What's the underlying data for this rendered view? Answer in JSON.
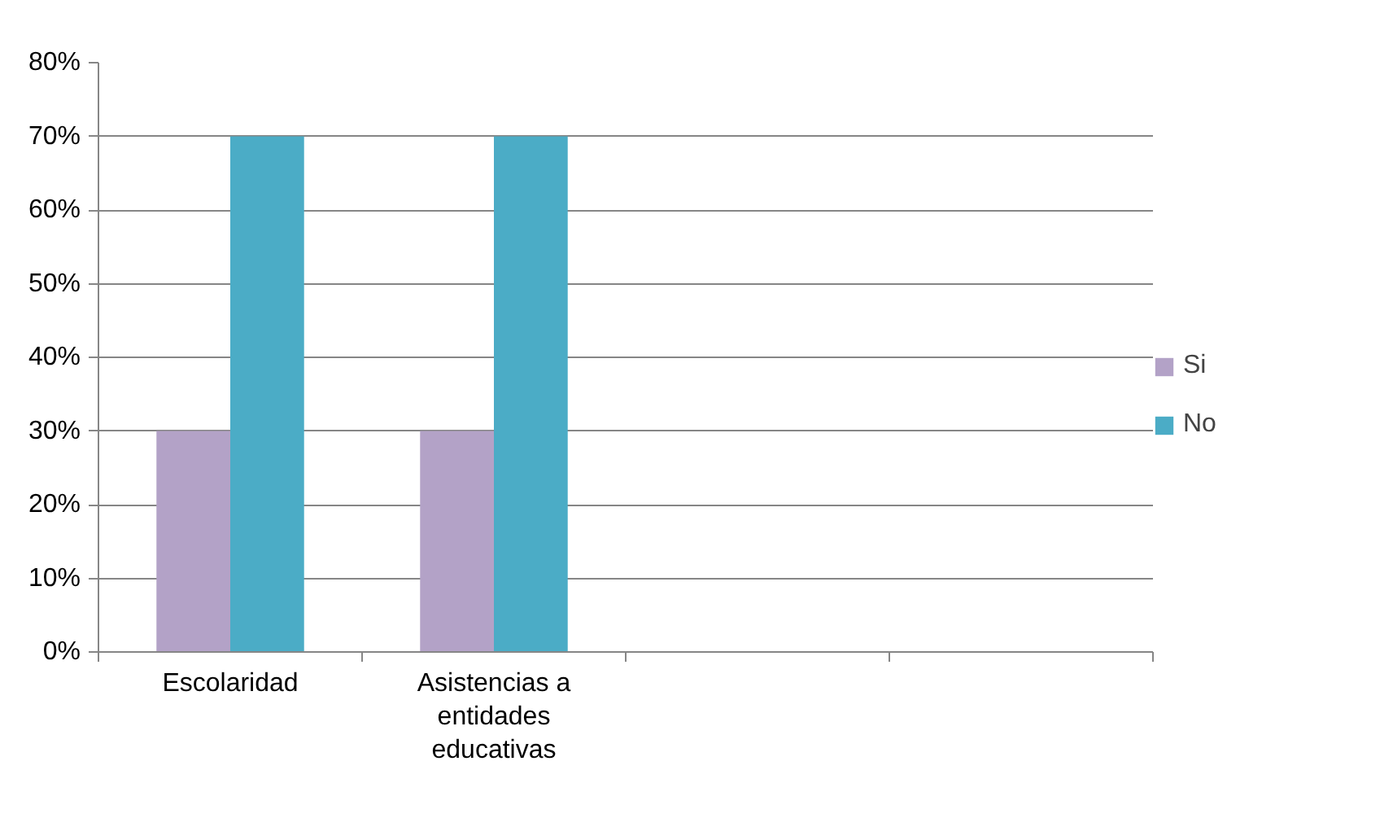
{
  "chart_data": {
    "type": "bar",
    "categories": [
      "Escolaridad",
      "Asistencias a entidades educativas",
      null,
      null
    ],
    "series": [
      {
        "name": "Si",
        "color": "#b3a2c7",
        "values": [
          30,
          30,
          null,
          null
        ]
      },
      {
        "name": "No",
        "color": "#4bacc6",
        "values": [
          70,
          70,
          null,
          null
        ]
      }
    ],
    "ylim": [
      0,
      80
    ],
    "yticks": [
      {
        "value": 0,
        "label": "0%"
      },
      {
        "value": 10,
        "label": "10%"
      },
      {
        "value": 20,
        "label": "20%"
      },
      {
        "value": 30,
        "label": "30%"
      },
      {
        "value": 40,
        "label": "40%"
      },
      {
        "value": 50,
        "label": "50%"
      },
      {
        "value": 60,
        "label": "60%"
      },
      {
        "value": 70,
        "label": "70%"
      },
      {
        "value": 80,
        "label": "80%"
      }
    ],
    "grid": "y",
    "legend": "right"
  }
}
